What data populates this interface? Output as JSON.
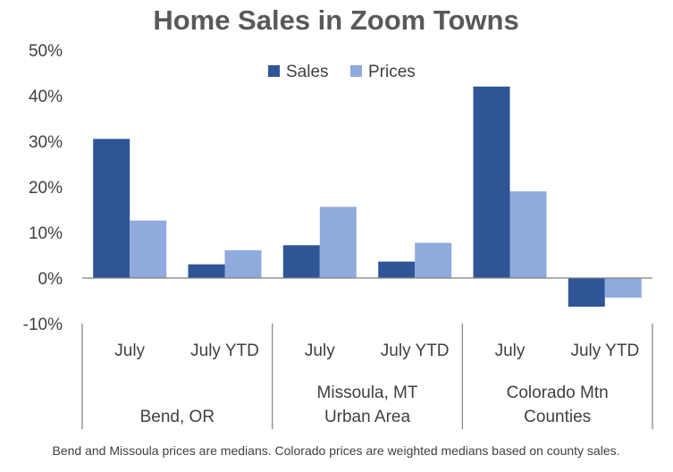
{
  "chart_data": {
    "type": "bar",
    "title": "Home Sales in Zoom Towns",
    "footnote": "Bend and Missoula prices are medians. Colorado prices are weighted medians based on county sales.",
    "ylim": [
      -10,
      50
    ],
    "yticks": [
      50,
      40,
      30,
      20,
      10,
      0,
      -10
    ],
    "ytick_labels": [
      "50%",
      "40%",
      "30%",
      "20%",
      "10%",
      "0%",
      "-10%"
    ],
    "legend_position": "top-center",
    "grid": false,
    "categories": [
      "July",
      "July YTD",
      "July",
      "July YTD",
      "July",
      "July YTD"
    ],
    "groups": [
      {
        "lines": [
          "Bend, OR"
        ]
      },
      {
        "lines": [
          "Missoula, MT",
          "Urban Area"
        ]
      },
      {
        "lines": [
          "Colorado Mtn",
          "Counties"
        ]
      }
    ],
    "series": [
      {
        "name": "Sales",
        "color": "#2f5597",
        "values": [
          30.5,
          3.0,
          7.2,
          3.6,
          42.0,
          -6.3
        ]
      },
      {
        "name": "Prices",
        "color": "#8faadc",
        "values": [
          12.6,
          6.1,
          15.6,
          7.7,
          19.0,
          -4.3
        ]
      }
    ]
  }
}
